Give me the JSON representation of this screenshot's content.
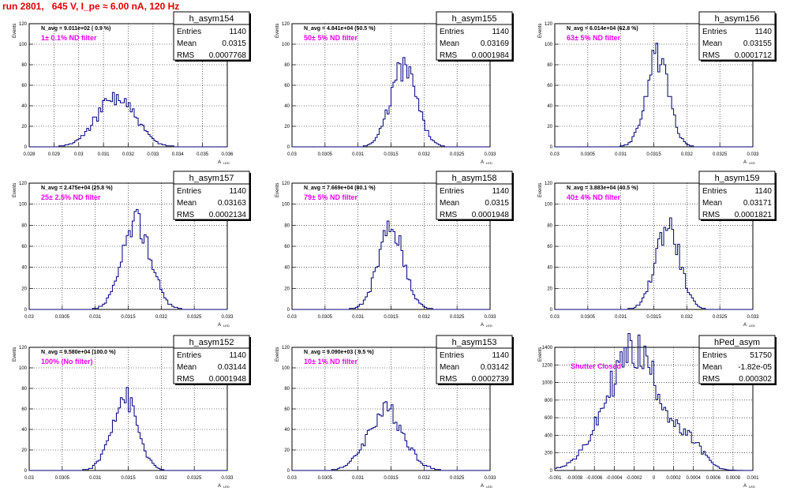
{
  "title": "run 2801,   645 V, I_pe ≈ 6.00 nA, 120 Hz",
  "stats_labels": {
    "entries": "Entries",
    "mean": "Mean",
    "rms": "RMS"
  },
  "ylabel": "Events",
  "xlabel_main": "A",
  "xlabel_sub": "LED",
  "colors": {
    "hist": "#00007a",
    "annotation": "#ee00ee",
    "title": "#e00000",
    "grid": "#000000"
  },
  "chart_data": [
    {
      "type": "bar",
      "name": "h_asym154",
      "navg": "N_avg = 9.011e+02 ( 0.9 %)",
      "filter": "1± 0.1% ND filter",
      "entries": "1140",
      "mean": "0.0315",
      "rms": "0.0007768",
      "xlim": [
        0.028,
        0.036
      ],
      "ylim": [
        0,
        120
      ],
      "xticks": [
        "0.028",
        "0.029",
        "0.03",
        "0.031",
        "0.032",
        "0.033",
        "0.034",
        "0.035",
        "0.036"
      ],
      "yticks": [
        "0",
        "20",
        "40",
        "60",
        "80",
        "100",
        "120"
      ],
      "peak": {
        "center": 0.0315,
        "sigma": 0.000776,
        "height": 48,
        "seed": 154
      }
    },
    {
      "type": "bar",
      "name": "h_asym155",
      "navg": "N_avg = 4.841e+04 (50.5 %)",
      "filter": "50± 5% ND filter",
      "entries": "1140",
      "mean": "0.03169",
      "rms": "0.0001984",
      "xlim": [
        0.03,
        0.033
      ],
      "ylim": [
        0,
        120
      ],
      "xticks": [
        "0.03",
        "0.0305",
        "0.031",
        "0.0315",
        "0.032",
        "0.0325",
        "0.033"
      ],
      "yticks": [
        "0",
        "20",
        "40",
        "60",
        "80",
        "100",
        "120"
      ],
      "peak": {
        "center": 0.03169,
        "sigma": 0.000198,
        "height": 77,
        "seed": 155
      }
    },
    {
      "type": "bar",
      "name": "h_asym156",
      "navg": "N_avg = 6.014e+04 (62.8 %)",
      "filter": "63± 5% ND filter",
      "entries": "1140",
      "mean": "0.03155",
      "rms": "0.0001712",
      "xlim": [
        0.03,
        0.033
      ],
      "ylim": [
        0,
        120
      ],
      "xticks": [
        "0.03",
        "0.0305",
        "0.031",
        "0.0315",
        "0.032",
        "0.0325",
        "0.033"
      ],
      "yticks": [
        "0",
        "20",
        "40",
        "60",
        "80",
        "100",
        "120"
      ],
      "peak": {
        "center": 0.03155,
        "sigma": 0.000171,
        "height": 87,
        "seed": 156
      }
    },
    {
      "type": "bar",
      "name": "h_asym157",
      "navg": "N_avg = 2.475e+04 (25.8 %)",
      "filter": "25± 2.5% ND filter",
      "entries": "1140",
      "mean": "0.03163",
      "rms": "0.0002134",
      "xlim": [
        0.03,
        0.033
      ],
      "ylim": [
        0,
        120
      ],
      "xticks": [
        "0.03",
        "0.0305",
        "0.031",
        "0.0315",
        "0.032",
        "0.0325",
        "0.033"
      ],
      "yticks": [
        "0",
        "20",
        "40",
        "60",
        "80",
        "100",
        "120"
      ],
      "peak": {
        "center": 0.03163,
        "sigma": 0.000213,
        "height": 83,
        "seed": 157
      }
    },
    {
      "type": "bar",
      "name": "h_asym158",
      "navg": "N_avg = 7.669e+04 (80.1 %)",
      "filter": "79± 5% ND filter",
      "entries": "1140",
      "mean": "0.0315",
      "rms": "0.0001948",
      "xlim": [
        0.03,
        0.033
      ],
      "ylim": [
        0,
        120
      ],
      "xticks": [
        "0.03",
        "0.0305",
        "0.031",
        "0.0315",
        "0.032",
        "0.0325",
        "0.033"
      ],
      "yticks": [
        "0",
        "20",
        "40",
        "60",
        "80",
        "100",
        "120"
      ],
      "peak": {
        "center": 0.0315,
        "sigma": 0.000195,
        "height": 76,
        "seed": 158
      }
    },
    {
      "type": "bar",
      "name": "h_asym159",
      "navg": "N_avg = 3.883e+04 (40.5 %)",
      "filter": "40± 4% ND filter",
      "entries": "1140",
      "mean": "0.03171",
      "rms": "0.0001821",
      "xlim": [
        0.03,
        0.033
      ],
      "ylim": [
        0,
        120
      ],
      "xticks": [
        "0.03",
        "0.0305",
        "0.031",
        "0.0315",
        "0.032",
        "0.0325",
        "0.033"
      ],
      "yticks": [
        "0",
        "20",
        "40",
        "60",
        "80",
        "100",
        "120"
      ],
      "peak": {
        "center": 0.03171,
        "sigma": 0.000182,
        "height": 80,
        "seed": 159
      }
    },
    {
      "type": "bar",
      "name": "h_asym152",
      "navg": "N_avg = 9.580e+04 (100.0 %)",
      "filter": "100% (No filter)",
      "entries": "1140",
      "mean": "0.03144",
      "rms": "0.0001948",
      "xlim": [
        0.03,
        0.033
      ],
      "ylim": [
        0,
        120
      ],
      "xticks": [
        "0.03",
        "0.0305",
        "0.031",
        "0.0315",
        "0.032",
        "0.0325",
        "0.033"
      ],
      "yticks": [
        "0",
        "20",
        "40",
        "60",
        "80",
        "100",
        "120"
      ],
      "peak": {
        "center": 0.03144,
        "sigma": 0.000195,
        "height": 72,
        "seed": 152
      }
    },
    {
      "type": "bar",
      "name": "h_asym153",
      "navg": "N_avg = 9.090e+03 ( 9.5 %)",
      "filter": "10± 1% ND filter",
      "entries": "1140",
      "mean": "0.03142",
      "rms": "0.0002739",
      "xlim": [
        0.03,
        0.033
      ],
      "ylim": [
        0,
        120
      ],
      "xticks": [
        "0.03",
        "0.0305",
        "0.031",
        "0.0315",
        "0.032",
        "0.0325",
        "0.033"
      ],
      "yticks": [
        "0",
        "20",
        "40",
        "60",
        "80",
        "100",
        "120"
      ],
      "peak": {
        "center": 0.03142,
        "sigma": 0.000274,
        "height": 58,
        "seed": 153
      }
    },
    {
      "type": "bar",
      "name": "hPed_asym",
      "navg": "",
      "filter": "Shutter Closed",
      "entries": "51750",
      "mean": "-1.82e-05",
      "rms": "0.000302",
      "xlim": [
        -0.001,
        0.001
      ],
      "ylim": [
        0,
        1400
      ],
      "xticks": [
        "-0.001",
        "-0.0008",
        "-0.0006",
        "-0.0004",
        "-0.0002",
        "0",
        "0.0002",
        "0.0004",
        "0.0006",
        "0.0008",
        "0.001"
      ],
      "yticks": [
        "0",
        "200",
        "400",
        "600",
        "800",
        "1000",
        "1200",
        "1400"
      ],
      "peak": {
        "center": -0.0002,
        "sigma": 0.00028,
        "height": 1360,
        "seed": 160,
        "shoulder": {
          "center": 0.0004,
          "sigma": 0.00012,
          "height": 210
        }
      }
    }
  ]
}
